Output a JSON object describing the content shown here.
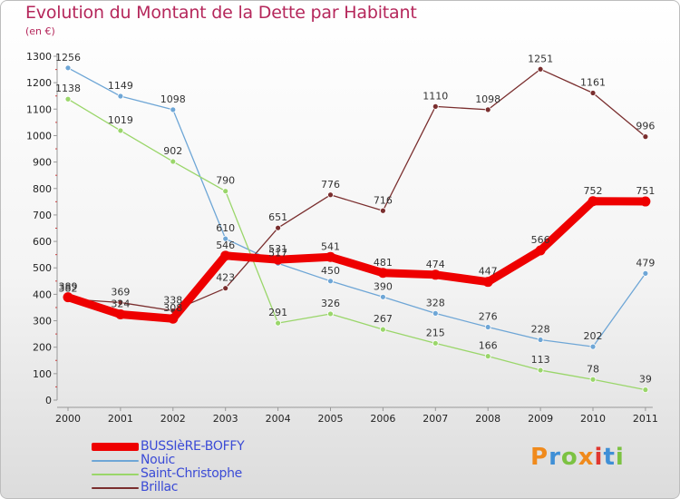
{
  "title": "Evolution du Montant de la Dette par Habitant",
  "subtitle": "(en €)",
  "logo": {
    "text": "Proxiti",
    "letter_colors": [
      "#f08a1c",
      "#3f8fd6",
      "#7cc242",
      "#f08a1c",
      "#e0372f",
      "#3f8fd6",
      "#7cc242"
    ]
  },
  "chart_data": {
    "type": "line",
    "title": "Evolution du Montant de la Dette par Habitant",
    "subtitle": "(en €)",
    "xlabel": "",
    "ylabel": "",
    "x": [
      "2000",
      "2001",
      "2002",
      "2003",
      "2004",
      "2005",
      "2006",
      "2007",
      "2008",
      "2009",
      "2010",
      "2011"
    ],
    "ylim": [
      0,
      1300
    ],
    "yticks": [
      0,
      100,
      200,
      300,
      400,
      500,
      600,
      700,
      800,
      900,
      1000,
      1100,
      1200,
      1300
    ],
    "grid": false,
    "legend_position": "bottom-left",
    "series": [
      {
        "name": "BUSSIèRE-BOFFY",
        "color": "#ee0000",
        "highlight": true,
        "values": [
          389,
          324,
          308,
          546,
          531,
          541,
          481,
          474,
          447,
          566,
          752,
          751
        ]
      },
      {
        "name": "Nouic",
        "color": "#6ea6d6",
        "highlight": false,
        "values": [
          1256,
          1149,
          1098,
          610,
          517,
          450,
          390,
          328,
          276,
          228,
          202,
          479
        ]
      },
      {
        "name": "Saint-Christophe",
        "color": "#9ad66a",
        "highlight": false,
        "values": [
          1138,
          1019,
          902,
          790,
          291,
          326,
          267,
          215,
          166,
          113,
          78,
          39
        ]
      },
      {
        "name": "Brillac",
        "color": "#7a2e2e",
        "highlight": false,
        "values": [
          382,
          369,
          338,
          423,
          651,
          776,
          716,
          1110,
          1098,
          1251,
          1161,
          996
        ]
      }
    ]
  }
}
